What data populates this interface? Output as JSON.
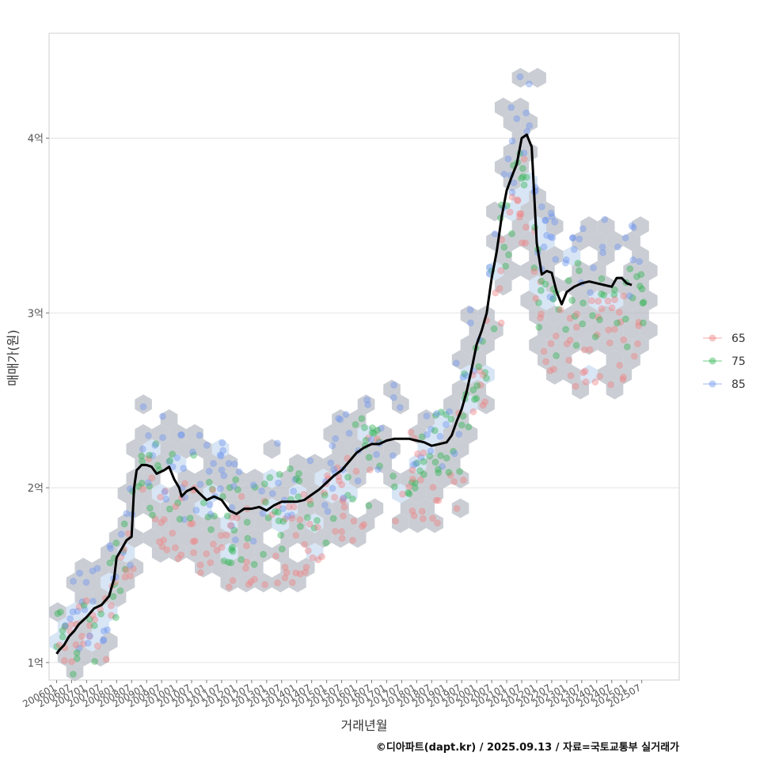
{
  "caption": "©디아파트(dapt.kr) / 2025.09.13 / 자료=국토교통부 실거래가",
  "chart_data": {
    "type": "scatter",
    "title": "",
    "xlabel": "거래년월",
    "ylabel": "매매가(원)",
    "x_range": [
      "2005-10",
      "2026-10"
    ],
    "y_range": [
      0.9,
      4.6
    ],
    "y_unit": "억",
    "y_ticks": [
      {
        "value": 1,
        "label": "1억"
      },
      {
        "value": 2,
        "label": "2억"
      },
      {
        "value": 3,
        "label": "3억"
      },
      {
        "value": 4,
        "label": "4억"
      }
    ],
    "x_ticks": [
      "200601",
      "200607",
      "200701",
      "200707",
      "200801",
      "200807",
      "200901",
      "200907",
      "201001",
      "201007",
      "201101",
      "201107",
      "201201",
      "201207",
      "201301",
      "201307",
      "201401",
      "201407",
      "201501",
      "201507",
      "201601",
      "201607",
      "201701",
      "201707",
      "201801",
      "201807",
      "201901",
      "201907",
      "202001",
      "202007",
      "202101",
      "202107",
      "202201",
      "202207",
      "202301",
      "202307",
      "202401",
      "202407",
      "202501",
      "202507"
    ],
    "grid": true,
    "legend_position": "right",
    "legend": [
      {
        "name": "65",
        "color": "#f08080"
      },
      {
        "name": "75",
        "color": "#2fb350"
      },
      {
        "name": "85",
        "color": "#6f95ef"
      }
    ],
    "hexbin_color": "#b8bec6",
    "line_color": "#000000",
    "trend": [
      [
        "2006-01",
        1.05
      ],
      [
        "2006-02",
        1.07
      ],
      [
        "2006-04",
        1.1
      ],
      [
        "2006-06",
        1.15
      ],
      [
        "2006-08",
        1.18
      ],
      [
        "2006-10",
        1.22
      ],
      [
        "2007-01",
        1.26
      ],
      [
        "2007-04",
        1.31
      ],
      [
        "2007-07",
        1.33
      ],
      [
        "2007-10",
        1.38
      ],
      [
        "2007-12",
        1.48
      ],
      [
        "2008-01",
        1.6
      ],
      [
        "2008-03",
        1.65
      ],
      [
        "2008-05",
        1.7
      ],
      [
        "2008-07",
        1.72
      ],
      [
        "2008-08",
        2.0
      ],
      [
        "2008-09",
        2.1
      ],
      [
        "2008-11",
        2.13
      ],
      [
        "2009-01",
        2.13
      ],
      [
        "2009-03",
        2.12
      ],
      [
        "2009-05",
        2.08
      ],
      [
        "2009-08",
        2.1
      ],
      [
        "2009-10",
        2.12
      ],
      [
        "2009-12",
        2.05
      ],
      [
        "2010-02",
        2.0
      ],
      [
        "2010-03",
        1.95
      ],
      [
        "2010-05",
        1.98
      ],
      [
        "2010-08",
        2.0
      ],
      [
        "2010-10",
        1.97
      ],
      [
        "2011-01",
        1.93
      ],
      [
        "2011-04",
        1.95
      ],
      [
        "2011-07",
        1.93
      ],
      [
        "2011-10",
        1.87
      ],
      [
        "2012-01",
        1.85
      ],
      [
        "2012-04",
        1.88
      ],
      [
        "2012-07",
        1.88
      ],
      [
        "2012-10",
        1.89
      ],
      [
        "2013-01",
        1.87
      ],
      [
        "2013-04",
        1.9
      ],
      [
        "2013-07",
        1.92
      ],
      [
        "2013-10",
        1.92
      ],
      [
        "2014-01",
        1.92
      ],
      [
        "2014-04",
        1.93
      ],
      [
        "2014-07",
        1.96
      ],
      [
        "2014-10",
        1.99
      ],
      [
        "2015-01",
        2.03
      ],
      [
        "2015-04",
        2.07
      ],
      [
        "2015-07",
        2.1
      ],
      [
        "2015-10",
        2.15
      ],
      [
        "2016-01",
        2.2
      ],
      [
        "2016-04",
        2.23
      ],
      [
        "2016-07",
        2.25
      ],
      [
        "2016-10",
        2.25
      ],
      [
        "2017-01",
        2.27
      ],
      [
        "2017-04",
        2.28
      ],
      [
        "2017-07",
        2.28
      ],
      [
        "2017-10",
        2.28
      ],
      [
        "2018-01",
        2.27
      ],
      [
        "2018-04",
        2.26
      ],
      [
        "2018-07",
        2.24
      ],
      [
        "2018-10",
        2.25
      ],
      [
        "2019-01",
        2.26
      ],
      [
        "2019-03",
        2.3
      ],
      [
        "2019-05",
        2.38
      ],
      [
        "2019-07",
        2.45
      ],
      [
        "2019-09",
        2.55
      ],
      [
        "2019-11",
        2.68
      ],
      [
        "2020-01",
        2.82
      ],
      [
        "2020-03",
        2.9
      ],
      [
        "2020-05",
        3.0
      ],
      [
        "2020-07",
        3.2
      ],
      [
        "2020-09",
        3.35
      ],
      [
        "2020-11",
        3.55
      ],
      [
        "2021-01",
        3.7
      ],
      [
        "2021-03",
        3.78
      ],
      [
        "2021-05",
        3.85
      ],
      [
        "2021-07",
        4.0
      ],
      [
        "2021-09",
        4.02
      ],
      [
        "2021-11",
        3.95
      ],
      [
        "2022-01",
        3.4
      ],
      [
        "2022-03",
        3.22
      ],
      [
        "2022-05",
        3.24
      ],
      [
        "2022-07",
        3.23
      ],
      [
        "2022-09",
        3.12
      ],
      [
        "2022-11",
        3.05
      ],
      [
        "2023-01",
        3.12
      ],
      [
        "2023-04",
        3.15
      ],
      [
        "2023-07",
        3.17
      ],
      [
        "2023-10",
        3.18
      ],
      [
        "2024-01",
        3.17
      ],
      [
        "2024-04",
        3.16
      ],
      [
        "2024-07",
        3.15
      ],
      [
        "2024-09",
        3.2
      ],
      [
        "2024-11",
        3.2
      ],
      [
        "2025-01",
        3.17
      ],
      [
        "2025-03",
        3.16
      ]
    ]
  }
}
